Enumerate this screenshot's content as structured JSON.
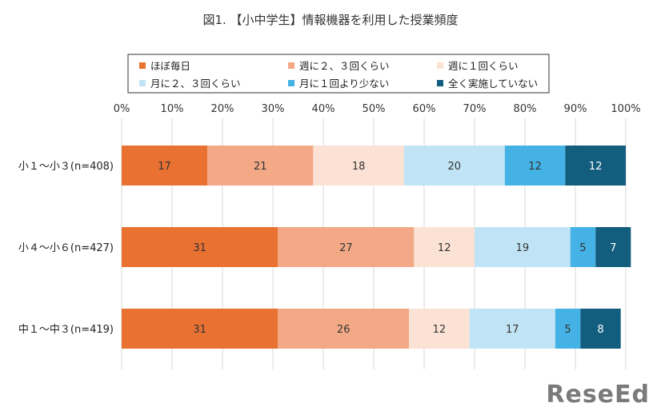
{
  "chart_data": {
    "type": "bar",
    "orientation": "horizontal",
    "stacked": true,
    "title": "図1. 【小中学生】情報機器を利用した授業頻度",
    "xlim": [
      0,
      100
    ],
    "x_ticks": [
      "0%",
      "10%",
      "20%",
      "30%",
      "40%",
      "50%",
      "60%",
      "70%",
      "80%",
      "90%",
      "100%"
    ],
    "grid": true,
    "legend_position": "top",
    "categories": [
      "小１〜小３(n=408)",
      "小４〜小６(n=427)",
      "中１〜中３(n=419)"
    ],
    "series": [
      {
        "name": "ほぼ毎日",
        "color": "#e97132",
        "values": [
          17,
          31,
          31
        ]
      },
      {
        "name": "週に２、３回くらい",
        "color": "#f3a986",
        "values": [
          21,
          27,
          26
        ]
      },
      {
        "name": "週に１回くらい",
        "color": "#fbe2d5",
        "values": [
          18,
          12,
          12
        ]
      },
      {
        "name": "月に２、３回くらい",
        "color": "#c0e4f5",
        "values": [
          20,
          19,
          17
        ]
      },
      {
        "name": "月に１回より少ない",
        "color": "#44b2e4",
        "values": [
          12,
          5,
          5
        ]
      },
      {
        "name": "全く実施していない",
        "color": "#135d7e",
        "values": [
          12,
          7,
          8
        ]
      }
    ]
  },
  "watermark": {
    "text": "ReseEd"
  }
}
